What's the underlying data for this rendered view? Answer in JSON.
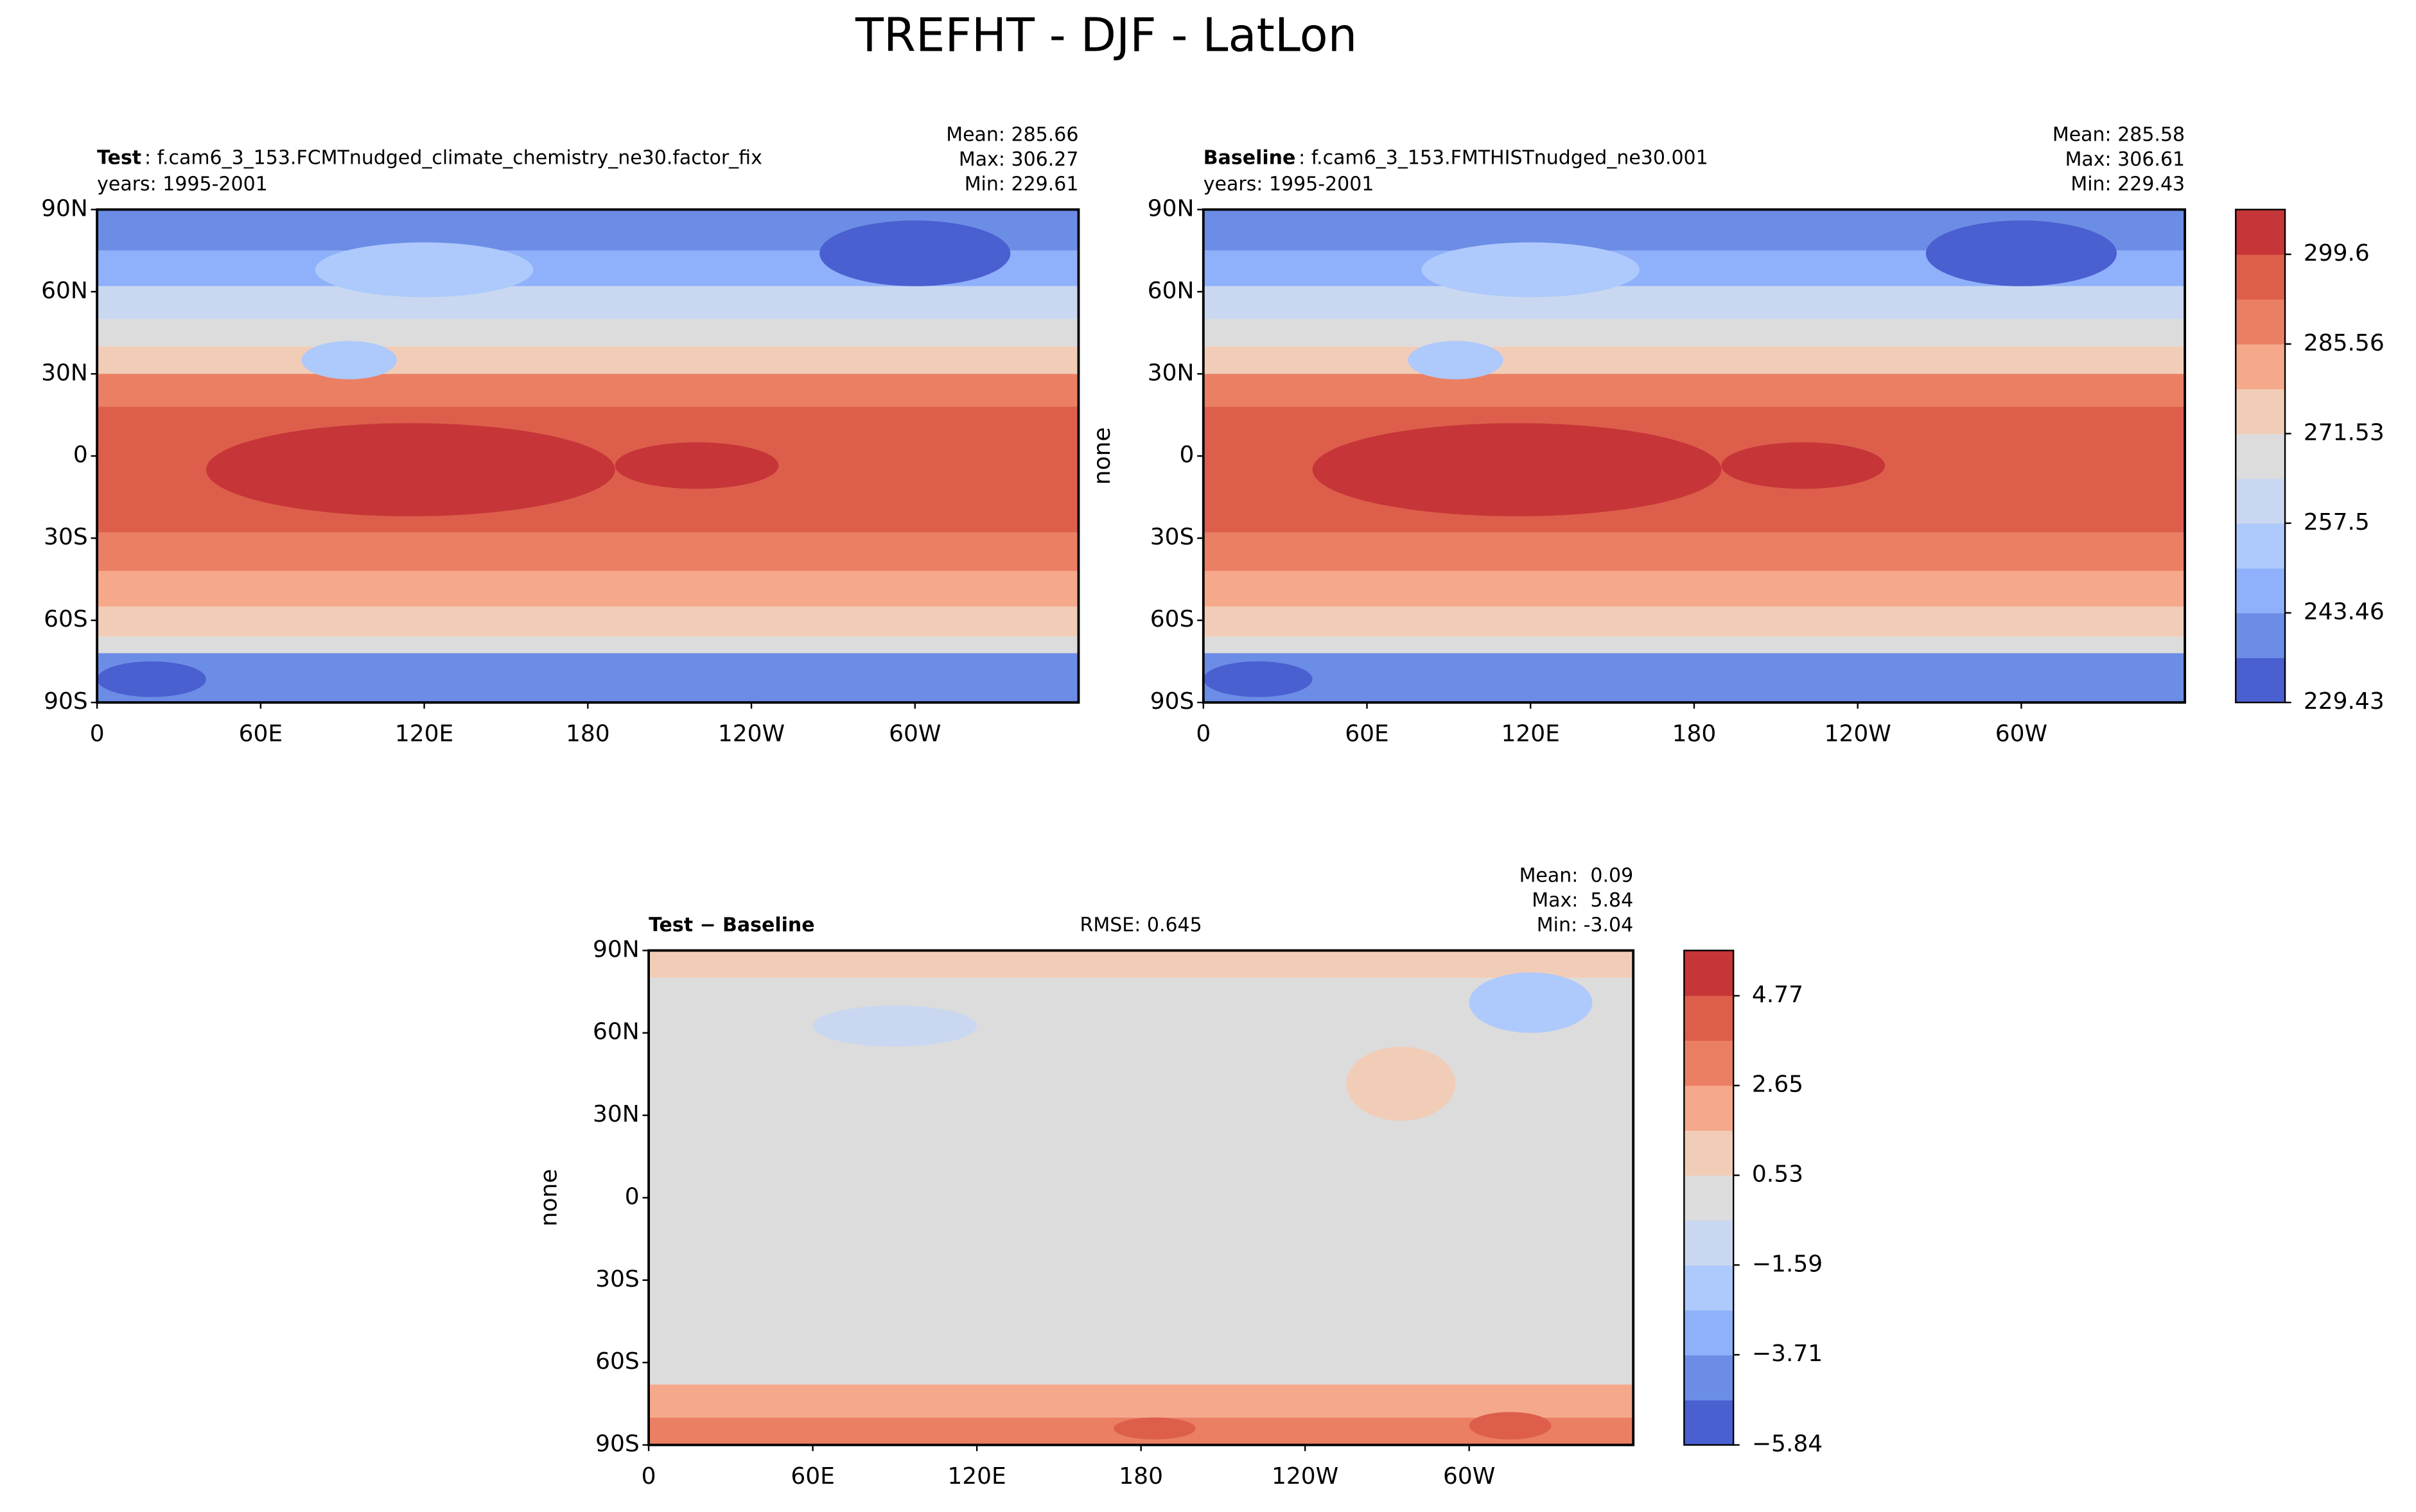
{
  "title": "TREFHT - DJF - LatLon",
  "chart_data": [
    {
      "type": "contour-map",
      "name": "Test",
      "case_name": ": f.cam6_3_153.FCMTnudged_climate_chemistry_ne30.factor_fix",
      "years": "years: 1995-2001",
      "stats": [
        "Mean: 285.66",
        "Max: 306.27",
        "Min: 229.61"
      ],
      "xlim": [
        0,
        360
      ],
      "xticks": [
        0,
        {
          "value": 60,
          "label": "60E"
        },
        {
          "value": 120,
          "label": "120E"
        },
        180,
        {
          "value": 240,
          "label": "120W"
        },
        {
          "value": 300,
          "label": "60W"
        }
      ],
      "ylim": [
        -90,
        90
      ],
      "yticks": [
        {
          "value": 90,
          "label": "90N"
        },
        {
          "value": 60,
          "label": "60N"
        },
        {
          "value": 30,
          "label": "30N"
        },
        0,
        {
          "value": -30,
          "label": "30S"
        },
        {
          "value": -60,
          "label": "60S"
        },
        {
          "value": -90,
          "label": "90S"
        }
      ]
    },
    {
      "type": "contour-map",
      "name": "Baseline",
      "case_name": ": f.cam6_3_153.FMTHISTnudged_ne30.001",
      "years": "years: 1995-2001",
      "stats": [
        "Mean: 285.58",
        "Max: 306.61",
        "Min: 229.43"
      ],
      "ylabel": "none",
      "xlim": [
        0,
        360
      ],
      "xticks": [
        0,
        {
          "value": 60,
          "label": "60E"
        },
        {
          "value": 120,
          "label": "120E"
        },
        180,
        {
          "value": 240,
          "label": "120W"
        },
        {
          "value": 300,
          "label": "60W"
        }
      ],
      "ylim": [
        -90,
        90
      ],
      "yticks": [
        {
          "value": 90,
          "label": "90N"
        },
        {
          "value": 60,
          "label": "60N"
        },
        {
          "value": 30,
          "label": "30N"
        },
        0,
        {
          "value": -30,
          "label": "30S"
        },
        {
          "value": -60,
          "label": "60S"
        },
        {
          "value": -90,
          "label": "90S"
        }
      ],
      "colorbar": {
        "ylim": [
          229.43,
          306.61
        ],
        "yticks": [
          299.6,
          285.56,
          271.53,
          257.5,
          243.46,
          229.43
        ],
        "colors": [
          "#4a5fd0",
          "#6b8de6",
          "#8fb0fa",
          "#aec9fb",
          "#c9d8f0",
          "#dcdcdc",
          "#f1cdb8",
          "#f5a98a",
          "#eb7f64",
          "#dd5f4b",
          "#c63538"
        ]
      }
    },
    {
      "type": "contour-map",
      "name": "Test − Baseline",
      "rmse": "RMSE: 0.645",
      "stats": [
        "Mean:  0.09",
        "Max:  5.84",
        "Min: -3.04"
      ],
      "ylabel": "none",
      "xlim": [
        0,
        360
      ],
      "xticks": [
        0,
        {
          "value": 60,
          "label": "60E"
        },
        {
          "value": 120,
          "label": "120E"
        },
        180,
        {
          "value": 240,
          "label": "120W"
        },
        {
          "value": 300,
          "label": "60W"
        }
      ],
      "ylim": [
        -90,
        90
      ],
      "yticks": [
        {
          "value": 90,
          "label": "90N"
        },
        {
          "value": 60,
          "label": "60N"
        },
        {
          "value": 30,
          "label": "30N"
        },
        0,
        {
          "value": -30,
          "label": "30S"
        },
        {
          "value": -60,
          "label": "60S"
        },
        {
          "value": -90,
          "label": "90S"
        }
      ],
      "colorbar": {
        "ylim": [
          -5.84,
          5.84
        ],
        "yticks": [
          4.77,
          2.65,
          0.53,
          {
            "value": -1.59,
            "label": "−1.59"
          },
          {
            "value": -3.71,
            "label": "−3.71"
          },
          {
            "value": -5.84,
            "label": "−5.84"
          }
        ],
        "colors": [
          "#4a5fd0",
          "#6b8de6",
          "#8fb0fa",
          "#aec9fb",
          "#c9d8f0",
          "#dcdcdc",
          "#f1cdb8",
          "#f5a98a",
          "#eb7f64",
          "#dd5f4b",
          "#c63538"
        ]
      }
    }
  ]
}
